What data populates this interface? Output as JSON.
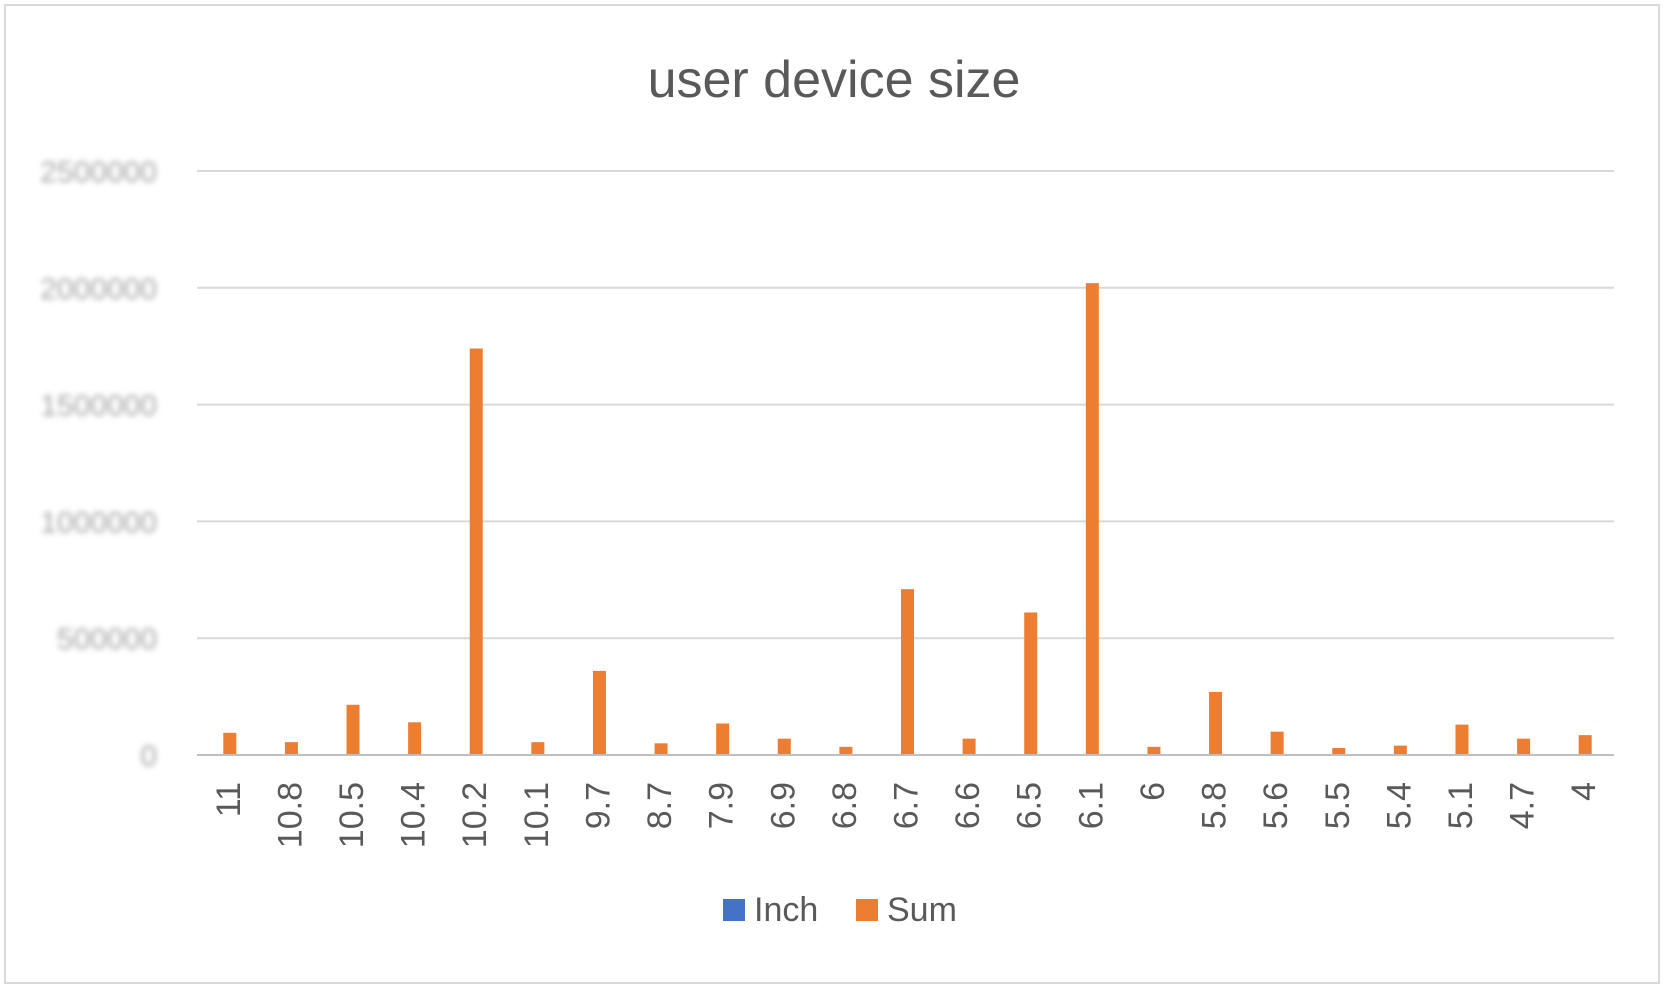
{
  "chart_data": {
    "type": "bar",
    "title": "user device size",
    "xlabel": "",
    "ylabel": "",
    "categories": [
      "11",
      "10.8",
      "10.5",
      "10.4",
      "10.2",
      "10.1",
      "9.7",
      "8.7",
      "7.9",
      "6.9",
      "6.8",
      "6.7",
      "6.6",
      "6.5",
      "6.1",
      "6",
      "5.8",
      "5.6",
      "5.5",
      "5.4",
      "5.1",
      "4.7",
      "4"
    ],
    "series": [
      {
        "name": "Inch",
        "color": "#4472C4",
        "values": [
          0,
          0,
          0,
          0,
          0,
          0,
          0,
          0,
          0,
          0,
          0,
          0,
          0,
          0,
          0,
          0,
          0,
          0,
          0,
          0,
          0,
          0,
          0
        ]
      },
      {
        "name": "Sum",
        "color": "#ED7D31",
        "values": [
          95000,
          55000,
          215000,
          140000,
          1740000,
          55000,
          360000,
          50000,
          135000,
          70000,
          35000,
          710000,
          70000,
          610000,
          2020000,
          35000,
          270000,
          100000,
          30000,
          40000,
          130000,
          70000,
          85000
        ]
      }
    ],
    "ylim": [
      0,
      2500000
    ],
    "yticks": [
      "0",
      "500000",
      "1000000",
      "1500000",
      "2000000",
      "2500000"
    ],
    "grid": true,
    "legend_position": "bottom"
  },
  "colors": {
    "gridline": "#d9d9d9",
    "axis_line": "#bfbfbf",
    "text": "#595959",
    "y_tick_text": "#a6a6a6"
  }
}
